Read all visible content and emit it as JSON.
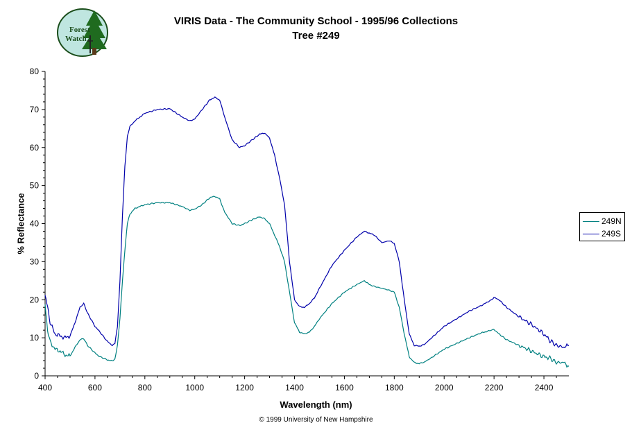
{
  "header": {
    "title_line1": "VIRIS Data - The Community School - 1995/96 Collections",
    "title_line2": "Tree #249",
    "logo_text_line1": "Forest",
    "logo_text_line2": "Watch",
    "logo_icon": "tree-logo-icon"
  },
  "footer": {
    "copyright": "© 1999 University of New Hampshire"
  },
  "colors": {
    "series_249N": "#008080",
    "series_249S": "#0000aa"
  },
  "chart_data": {
    "type": "line",
    "title": "VIRIS Data - The Community School - 1995/96 Collections",
    "subtitle": "Tree #249",
    "xlabel": "Wavelength (nm)",
    "ylabel": "% Reflectance",
    "xlim": [
      400,
      2500
    ],
    "ylim": [
      0,
      80
    ],
    "xticks": [
      400,
      600,
      800,
      1000,
      1200,
      1400,
      1600,
      1800,
      2000,
      2200,
      2400
    ],
    "yticks": [
      0,
      10,
      20,
      30,
      40,
      50,
      60,
      70,
      80
    ],
    "grid": false,
    "legend": "right",
    "series": [
      {
        "name": "249N",
        "color": "#008080",
        "x": [
          400,
          410,
          420,
          440,
          460,
          480,
          500,
          520,
          540,
          555,
          570,
          600,
          620,
          650,
          670,
          680,
          690,
          700,
          710,
          720,
          730,
          740,
          760,
          800,
          850,
          900,
          950,
          980,
          1000,
          1030,
          1060,
          1080,
          1100,
          1120,
          1150,
          1180,
          1200,
          1230,
          1260,
          1280,
          1300,
          1320,
          1340,
          1360,
          1380,
          1400,
          1420,
          1440,
          1460,
          1480,
          1500,
          1550,
          1600,
          1650,
          1680,
          1700,
          1720,
          1750,
          1780,
          1800,
          1820,
          1840,
          1860,
          1880,
          1900,
          1920,
          1950,
          2000,
          2050,
          2100,
          2150,
          2190,
          2200,
          2220,
          2250,
          2300,
          2350,
          2400,
          2420,
          2450,
          2480,
          2500
        ],
        "y": [
          19,
          12,
          9,
          7,
          6.5,
          5.5,
          5.2,
          7.5,
          9.5,
          9.8,
          8,
          6,
          5,
          4.2,
          3.9,
          4.5,
          8,
          15,
          25,
          33,
          40,
          42.5,
          44,
          45,
          45.5,
          45.5,
          44.5,
          43.5,
          43.8,
          45,
          46.8,
          47.2,
          46.5,
          43,
          40,
          39.5,
          40,
          41,
          41.8,
          41.3,
          40,
          37,
          34,
          30,
          22,
          14,
          11.5,
          11,
          11.5,
          13,
          15,
          19,
          22,
          24,
          25,
          24,
          23.5,
          23,
          22.5,
          22,
          18,
          11,
          5,
          3.5,
          3.2,
          3.6,
          4.8,
          7,
          8.5,
          10,
          11.3,
          12,
          12.2,
          11,
          9.5,
          8,
          6.5,
          5,
          4.8,
          3.5,
          3.5,
          2.5
        ]
      },
      {
        "name": "249S",
        "color": "#0000aa",
        "x": [
          400,
          410,
          420,
          440,
          460,
          480,
          500,
          520,
          540,
          555,
          570,
          600,
          620,
          650,
          670,
          680,
          690,
          700,
          710,
          720,
          730,
          740,
          760,
          800,
          850,
          900,
          950,
          980,
          1000,
          1030,
          1060,
          1080,
          1100,
          1120,
          1150,
          1180,
          1200,
          1230,
          1260,
          1280,
          1300,
          1320,
          1340,
          1360,
          1380,
          1400,
          1420,
          1440,
          1460,
          1480,
          1500,
          1550,
          1600,
          1650,
          1680,
          1700,
          1720,
          1750,
          1780,
          1800,
          1820,
          1840,
          1860,
          1880,
          1900,
          1920,
          1950,
          2000,
          2050,
          2100,
          2150,
          2190,
          2200,
          2220,
          2250,
          2300,
          2350,
          2400,
          2420,
          2450,
          2480,
          2500
        ],
        "y": [
          21,
          18,
          14,
          11,
          10.5,
          10,
          10.5,
          14,
          18,
          19,
          16.5,
          13,
          11.5,
          9,
          8,
          8.5,
          13,
          25,
          42,
          55,
          63,
          65.5,
          67,
          69,
          70,
          70.2,
          68,
          67,
          67.5,
          70,
          72.5,
          73.2,
          72.5,
          68,
          62,
          60,
          60.5,
          62,
          63.5,
          63.8,
          62.5,
          58,
          52,
          45,
          30,
          20,
          18.2,
          18,
          19,
          20.5,
          23,
          29,
          33,
          36.5,
          38,
          37.5,
          37,
          35,
          35.5,
          34.8,
          30,
          20,
          11,
          8,
          7.8,
          8.2,
          10,
          13,
          15,
          17,
          18.5,
          20,
          20.6,
          20,
          18,
          15.5,
          13.5,
          11,
          9.5,
          8,
          7.5,
          8
        ]
      }
    ]
  }
}
